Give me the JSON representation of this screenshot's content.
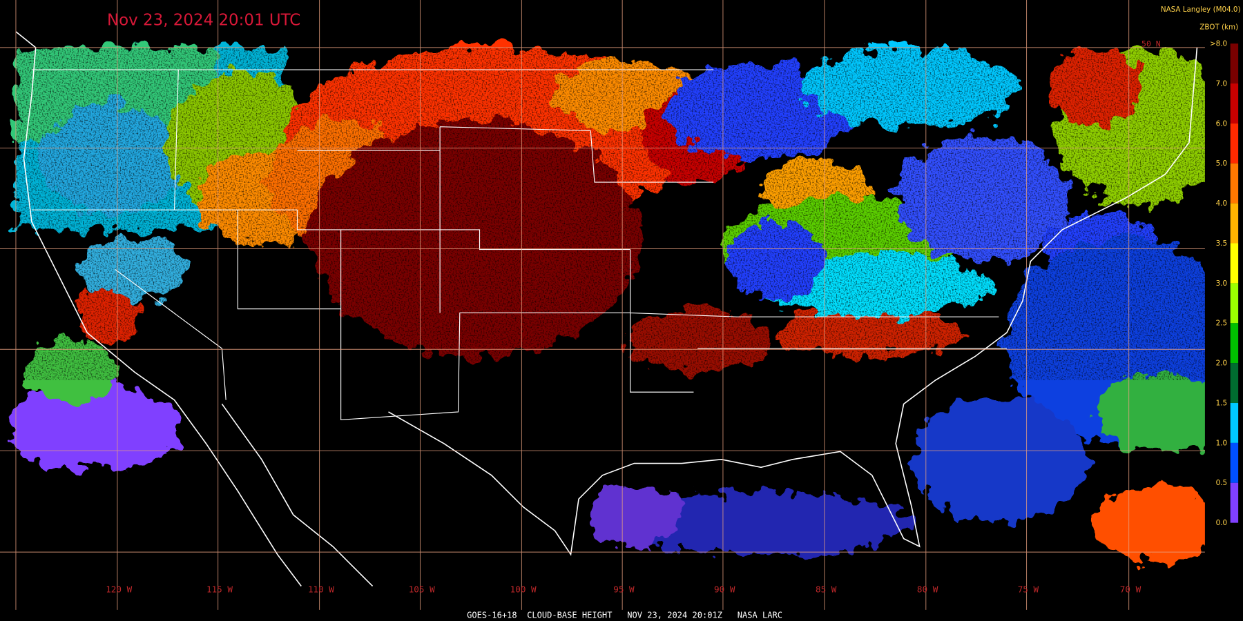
{
  "header": {
    "timestamp": "Nov 23, 2024 20:01 UTC",
    "source": "NASA Langley (M04.0)",
    "variable": "ZBOT (km)"
  },
  "legend": {
    "labels": [
      ">8.0",
      "7.0",
      "6.0",
      "5.0",
      "4.0",
      "3.5",
      "3.0",
      "2.5",
      "2.0",
      "1.5",
      "1.0",
      "0.5",
      "0.0"
    ],
    "colors": [
      "#7a0000",
      "#c80000",
      "#ff2a00",
      "#ff7800",
      "#ffb400",
      "#ffff00",
      "#9cff00",
      "#00c000",
      "#006c30",
      "#00c8ff",
      "#0050ff",
      "#8040ff"
    ]
  },
  "map": {
    "longitude_labels": [
      "120 W",
      "115 W",
      "110 W",
      "105 W",
      "100 W",
      "95 W",
      "90 W",
      "85 W",
      "80 W",
      "75 W",
      "70 W"
    ],
    "latitude_labels": [
      "50 N"
    ]
  },
  "footer": {
    "caption": "GOES-16+18  CLOUD-BASE HEIGHT   NOV 23, 2024 20:01Z   NASA LARC"
  }
}
